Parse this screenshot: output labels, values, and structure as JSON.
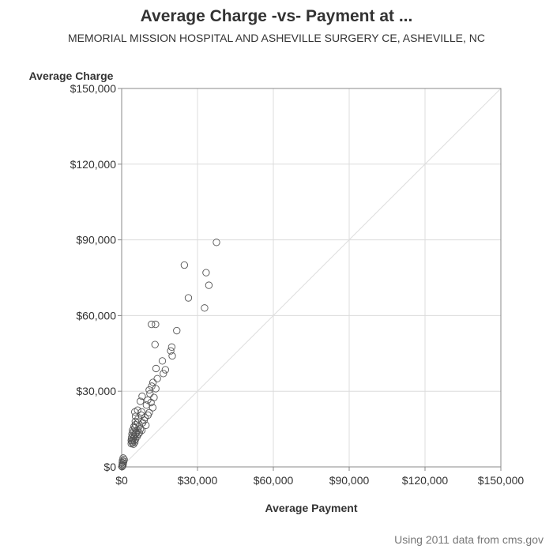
{
  "chart_data": {
    "type": "scatter",
    "title": "Average Charge -vs- Payment at ...",
    "subtitle": "MEMORIAL MISSION HOSPITAL AND ASHEVILLE SURGERY CE, ASHEVILLE, NC",
    "xlabel": "Average Payment",
    "ylabel": "Average Charge",
    "xlim": [
      0,
      150000
    ],
    "ylim": [
      0,
      150000
    ],
    "x_ticks": [
      0,
      30000,
      60000,
      90000,
      120000,
      150000
    ],
    "y_ticks": [
      0,
      30000,
      60000,
      90000,
      120000,
      150000
    ],
    "x_tick_labels": [
      "$0",
      "$30,000",
      "$60,000",
      "$90,000",
      "$120,000",
      "$150,000"
    ],
    "y_tick_labels": [
      "$0",
      "$30,000",
      "$60,000",
      "$90,000",
      "$120,000",
      "$150,000"
    ],
    "grid": true,
    "reference_line": "y = x",
    "marker": "open-circle",
    "points": [
      [
        37500,
        89000
      ],
      [
        24800,
        80000
      ],
      [
        33400,
        77000
      ],
      [
        34500,
        72000
      ],
      [
        26400,
        67000
      ],
      [
        32800,
        63000
      ],
      [
        11800,
        56500
      ],
      [
        13400,
        56500
      ],
      [
        21800,
        54000
      ],
      [
        13200,
        48500
      ],
      [
        19800,
        47500
      ],
      [
        19400,
        46000
      ],
      [
        20000,
        44000
      ],
      [
        16100,
        42000
      ],
      [
        13600,
        39000
      ],
      [
        17300,
        38500
      ],
      [
        16500,
        37000
      ],
      [
        14100,
        35000
      ],
      [
        12400,
        33500
      ],
      [
        11900,
        32000
      ],
      [
        13500,
        31000
      ],
      [
        10900,
        30500
      ],
      [
        11200,
        29000
      ],
      [
        8100,
        28000
      ],
      [
        12800,
        27500
      ],
      [
        10300,
        26500
      ],
      [
        7400,
        26000
      ],
      [
        11600,
        25500
      ],
      [
        9800,
        24500
      ],
      [
        12300,
        23500
      ],
      [
        6300,
        22500
      ],
      [
        5200,
        21800
      ],
      [
        7900,
        21800
      ],
      [
        10900,
        21500
      ],
      [
        5500,
        20000
      ],
      [
        7700,
        20500
      ],
      [
        10400,
        20500
      ],
      [
        9200,
        19500
      ],
      [
        6500,
        19000
      ],
      [
        8900,
        18500
      ],
      [
        5400,
        18000
      ],
      [
        6400,
        17500
      ],
      [
        8300,
        17500
      ],
      [
        5500,
        16800
      ],
      [
        9600,
        16500
      ],
      [
        4900,
        16000
      ],
      [
        6900,
        16000
      ],
      [
        7400,
        15000
      ],
      [
        5200,
        15500
      ],
      [
        4300,
        14500
      ],
      [
        6200,
        14500
      ],
      [
        8000,
        14500
      ],
      [
        4700,
        14000
      ],
      [
        5800,
        13500
      ],
      [
        7000,
        13500
      ],
      [
        4100,
        13000
      ],
      [
        5400,
        13000
      ],
      [
        6600,
        13000
      ],
      [
        4500,
        12500
      ],
      [
        5100,
        12000
      ],
      [
        6100,
        12000
      ],
      [
        3900,
        11500
      ],
      [
        4800,
        11500
      ],
      [
        4300,
        11000
      ],
      [
        5500,
        11000
      ],
      [
        3800,
        10500
      ],
      [
        4900,
        10500
      ],
      [
        4100,
        10000
      ],
      [
        5200,
        9800
      ],
      [
        4300,
        9500
      ],
      [
        3800,
        9200
      ],
      [
        4700,
        9000
      ],
      [
        600,
        3500
      ],
      [
        1000,
        2900
      ],
      [
        350,
        2500
      ],
      [
        800,
        2100
      ],
      [
        300,
        1700
      ],
      [
        600,
        1300
      ],
      [
        250,
        900
      ],
      [
        500,
        600
      ],
      [
        200,
        300
      ],
      [
        150,
        100
      ]
    ]
  },
  "footnote": "Using 2011 data from cms.gov"
}
